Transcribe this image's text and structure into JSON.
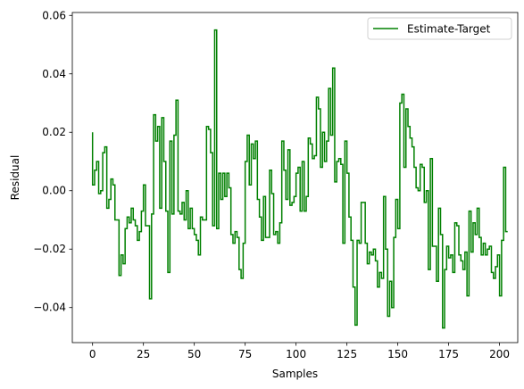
{
  "chart_data": {
    "type": "line",
    "drawstyle": "steps",
    "xlabel": "Samples",
    "ylabel": "Residual",
    "xlim": [
      -9.95,
      208.95
    ],
    "ylim": [
      -0.052,
      0.061
    ],
    "xticks": [
      0,
      25,
      50,
      75,
      100,
      125,
      150,
      175,
      200
    ],
    "yticks": [
      -0.04,
      -0.02,
      0.0,
      0.02,
      0.04,
      0.06
    ],
    "ytick_labels": [
      "−0.04",
      "−0.02",
      "0.00",
      "0.02",
      "0.04",
      "0.06"
    ],
    "legend": {
      "position": "top-right",
      "entries": [
        "Estimate-Target"
      ]
    },
    "grid": false,
    "series": [
      {
        "name": "Estimate-Target",
        "color": "#008000",
        "x_start": 0,
        "x_step": 1,
        "values": [
          0.02,
          0.002,
          0.007,
          0.01,
          -0.001,
          0.0,
          0.013,
          0.015,
          -0.006,
          -0.003,
          0.004,
          0.002,
          -0.01,
          -0.01,
          -0.029,
          -0.022,
          -0.025,
          -0.013,
          -0.009,
          -0.011,
          -0.006,
          -0.01,
          -0.012,
          -0.017,
          -0.014,
          -0.007,
          0.002,
          -0.012,
          -0.012,
          -0.037,
          -0.008,
          0.026,
          0.017,
          0.022,
          -0.006,
          0.025,
          0.01,
          -0.007,
          -0.028,
          0.017,
          -0.008,
          0.019,
          0.031,
          -0.007,
          -0.008,
          -0.004,
          -0.01,
          0.0,
          -0.013,
          -0.006,
          -0.013,
          -0.015,
          -0.017,
          -0.022,
          -0.009,
          -0.01,
          -0.01,
          0.022,
          0.021,
          0.013,
          -0.012,
          0.055,
          -0.013,
          0.006,
          -0.003,
          0.006,
          -0.002,
          0.006,
          0.001,
          -0.015,
          -0.018,
          -0.014,
          -0.016,
          -0.027,
          -0.03,
          -0.018,
          0.01,
          0.019,
          0.002,
          0.016,
          0.011,
          0.017,
          -0.003,
          -0.009,
          -0.017,
          -0.002,
          -0.016,
          -0.016,
          0.007,
          -0.001,
          -0.015,
          -0.014,
          -0.018,
          -0.011,
          0.017,
          0.007,
          -0.003,
          0.014,
          -0.005,
          -0.004,
          -0.002,
          0.006,
          0.008,
          -0.007,
          0.01,
          -0.007,
          -0.002,
          0.018,
          0.016,
          0.011,
          0.012,
          0.032,
          0.028,
          0.008,
          0.02,
          0.01,
          0.017,
          0.035,
          0.019,
          0.042,
          0.003,
          0.01,
          0.011,
          0.009,
          -0.018,
          0.017,
          0.006,
          -0.009,
          -0.017,
          -0.033,
          -0.046,
          -0.017,
          -0.018,
          -0.004,
          -0.004,
          -0.018,
          -0.025,
          -0.021,
          -0.022,
          -0.02,
          -0.024,
          -0.033,
          -0.028,
          -0.03,
          -0.002,
          -0.02,
          -0.043,
          -0.031,
          -0.04,
          -0.016,
          -0.003,
          -0.013,
          0.03,
          0.033,
          0.008,
          0.028,
          0.022,
          0.018,
          0.015,
          0.008,
          0.001,
          0.0,
          0.009,
          0.008,
          -0.004,
          0.0,
          -0.027,
          0.011,
          -0.019,
          -0.019,
          -0.031,
          -0.006,
          -0.015,
          -0.047,
          -0.027,
          -0.019,
          -0.023,
          -0.022,
          -0.028,
          -0.011,
          -0.012,
          -0.022,
          -0.024,
          -0.027,
          -0.021,
          -0.036,
          -0.007,
          -0.021,
          -0.011,
          -0.015,
          -0.006,
          -0.016,
          -0.022,
          -0.018,
          -0.022,
          -0.02,
          -0.019,
          -0.028,
          -0.03,
          -0.026,
          -0.022,
          -0.036,
          -0.017,
          0.008,
          -0.014
        ]
      }
    ]
  }
}
